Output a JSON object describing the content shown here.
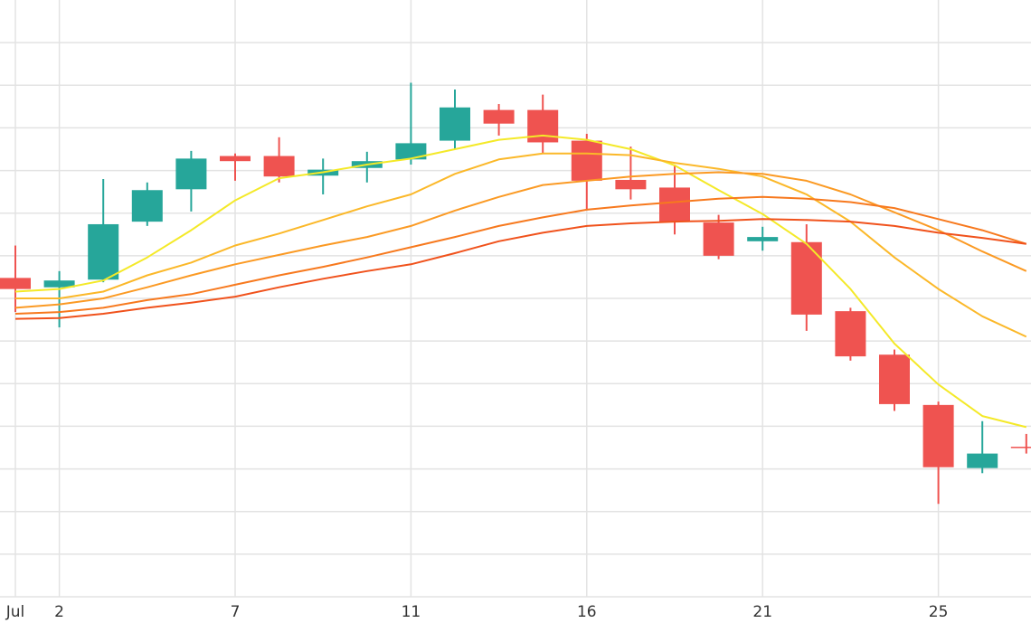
{
  "chart_data": {
    "type": "candlestick",
    "categories": [
      "Jul",
      "2",
      null,
      null,
      null,
      "7",
      null,
      null,
      null,
      "11",
      null,
      null,
      null,
      "16",
      null,
      null,
      null,
      "21",
      null,
      null,
      null,
      "25",
      null,
      null
    ],
    "open": [
      374,
      363,
      372,
      440,
      478,
      517,
      517,
      494,
      503,
      513,
      535,
      571,
      571,
      535,
      489,
      480,
      439,
      417,
      416,
      335,
      284,
      225,
      151,
      176
    ],
    "high": [
      412,
      382,
      490,
      486,
      523,
      520,
      539,
      514,
      522,
      603,
      595,
      578,
      589,
      543,
      528,
      507,
      448,
      434,
      437,
      339,
      290,
      229,
      206,
      191
    ],
    "low": [
      334,
      316,
      369,
      435,
      452,
      488,
      486,
      472,
      486,
      507,
      525,
      541,
      520,
      455,
      466,
      425,
      396,
      406,
      312,
      277,
      218,
      109,
      145,
      168
    ],
    "close": [
      361,
      371,
      437,
      477,
      514,
      511,
      493,
      501,
      511,
      532,
      574,
      555,
      533,
      488,
      478,
      440,
      400,
      422,
      331,
      282,
      226,
      152,
      168,
      175
    ],
    "up_color": "#26a69a",
    "down_color": "#ef5350",
    "series": [
      {
        "color": "#f4e928",
        "values": [
          358,
          361,
          371,
          398,
          430,
          465,
          491,
          498,
          507,
          514,
          525,
          536,
          541,
          536,
          525,
          506,
          477,
          449,
          414,
          361,
          297,
          249,
          212,
          199
        ]
      },
      {
        "color": "#fbb829",
        "values": [
          350,
          350,
          358,
          377,
          392,
          412,
          426,
          442,
          458,
          472,
          496,
          513,
          520,
          520,
          518,
          509,
          502,
          493,
          472,
          440,
          398,
          361,
          329,
          305
        ]
      },
      {
        "color": "#fb9a24",
        "values": [
          339,
          343,
          350,
          363,
          377,
          390,
          401,
          412,
          422,
          435,
          453,
          469,
          483,
          488,
          493,
          496,
          498,
          496,
          488,
          472,
          451,
          430,
          405,
          382
        ]
      },
      {
        "color": "#f7791e",
        "values": [
          332,
          334,
          339,
          348,
          355,
          366,
          377,
          387,
          398,
          410,
          422,
          435,
          445,
          454,
          459,
          463,
          467,
          469,
          467,
          463,
          456,
          443,
          430,
          414
        ]
      },
      {
        "color": "#f0521c",
        "values": [
          326,
          327,
          332,
          339,
          345,
          352,
          363,
          373,
          382,
          390,
          403,
          417,
          427,
          435,
          438,
          440,
          441,
          443,
          442,
          440,
          435,
          427,
          421,
          414
        ]
      }
    ],
    "ylim": [
      0,
      700
    ],
    "yticks": [
      0,
      50,
      100,
      150,
      200,
      250,
      300,
      350,
      400,
      450,
      500,
      550,
      600,
      650
    ],
    "grid": true
  }
}
